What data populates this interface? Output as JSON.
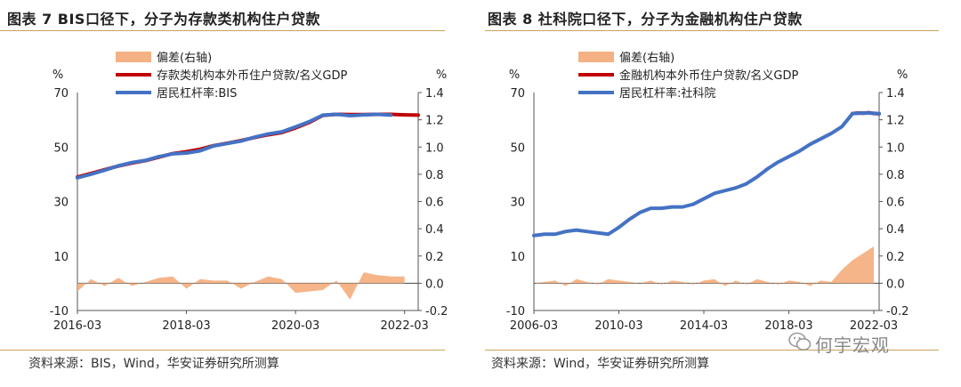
{
  "chart_data": [
    {
      "type": "line",
      "title": "图表 7 BIS口径下，分子为存款类机构住户贷款",
      "source": "资料来源：BIS，Wind，华安证券研究所测算",
      "left_axis": {
        "unit": "%",
        "ticks": [
          70,
          50,
          30,
          10,
          -10
        ],
        "range": [
          -10,
          70
        ]
      },
      "right_axis": {
        "unit": "%",
        "ticks": [
          "1.4",
          "1.2",
          "1.0",
          "0.8",
          "0.6",
          "0.4",
          "0.2",
          "0.0",
          "-0.2"
        ],
        "range": [
          -0.2,
          1.4
        ]
      },
      "x_ticks": [
        {
          "label": "2016-03",
          "x": 0
        },
        {
          "label": "2018-03",
          "x": 8
        },
        {
          "label": "2020-03",
          "x": 16
        },
        {
          "label": "2022-03",
          "x": 24
        }
      ],
      "x_range": [
        0,
        25
      ],
      "legend": [
        "偏差(右轴)",
        "存款类机构本外币住户贷款/名义GDP",
        "居民杠杆率:BIS"
      ],
      "series": [
        {
          "name": "偏差(右轴)",
          "kind": "area",
          "axis": "right",
          "color": "#f4b183",
          "x": [
            0,
            1,
            2,
            3,
            4,
            5,
            6,
            7,
            8,
            9,
            10,
            11,
            12,
            13,
            14,
            15,
            16,
            17,
            18,
            19,
            20,
            21,
            22,
            23,
            24
          ],
          "values": [
            -0.06,
            0.03,
            -0.02,
            0.04,
            -0.02,
            0.01,
            0.04,
            0.05,
            -0.04,
            0.03,
            0.02,
            0.02,
            -0.04,
            0.01,
            0.05,
            0.03,
            -0.07,
            -0.06,
            -0.05,
            0.02,
            -0.12,
            0.08,
            0.06,
            0.05,
            0.05
          ]
        },
        {
          "name": "存款类机构本外币住户贷款/名义GDP",
          "kind": "line",
          "axis": "left",
          "color": "#c00000",
          "x": [
            0,
            1,
            2,
            3,
            4,
            5,
            6,
            7,
            8,
            9,
            10,
            11,
            12,
            13,
            14,
            15,
            16,
            17,
            18,
            19,
            20,
            21,
            22,
            23,
            24,
            25
          ],
          "values": [
            39,
            40.3,
            41.7,
            43,
            44.1,
            45,
            46.3,
            47.6,
            48.3,
            49.2,
            50.5,
            51.4,
            52.4,
            53.5,
            54.5,
            55.3,
            57,
            59,
            61.6,
            62,
            61.9,
            61.9,
            62,
            62,
            61.8,
            61.7
          ]
        },
        {
          "name": "居民杠杆率:BIS",
          "kind": "line",
          "axis": "left",
          "color": "#4472c4",
          "x": [
            0,
            1,
            2,
            3,
            4,
            5,
            6,
            7,
            8,
            9,
            10,
            11,
            12,
            13,
            14,
            15,
            16,
            17,
            18,
            19,
            20,
            21,
            22,
            23
          ],
          "values": [
            38.7,
            40,
            41.5,
            43.1,
            44.3,
            45.1,
            46.5,
            47.5,
            47.8,
            48.6,
            50.4,
            51.3,
            52.2,
            53.6,
            54.8,
            55.6,
            57.4,
            59.3,
            61.7,
            62,
            61.5,
            61.8,
            62,
            61.7
          ]
        }
      ]
    },
    {
      "type": "line",
      "title": "图表 8 社科院口径下，分子为金融机构住户贷款",
      "source": "资料来源：Wind，华安证券研究所测算",
      "left_axis": {
        "unit": "%",
        "ticks": [
          70,
          50,
          30,
          10,
          -10
        ],
        "range": [
          -10,
          70
        ]
      },
      "right_axis": {
        "unit": "%",
        "ticks": [
          "1.4",
          "1.2",
          "1.0",
          "0.8",
          "0.6",
          "0.4",
          "0.2",
          "0.0",
          "-0.2"
        ],
        "range": [
          -0.2,
          1.4
        ]
      },
      "x_ticks": [
        {
          "label": "2006-03",
          "x": 0
        },
        {
          "label": "2010-03",
          "x": 16
        },
        {
          "label": "2014-03",
          "x": 32
        },
        {
          "label": "2018-03",
          "x": 48
        },
        {
          "label": "2022-03",
          "x": 64
        }
      ],
      "x_range": [
        0,
        65
      ],
      "legend": [
        "偏差(右轴)",
        "金融机构本外币住户贷款/名义GDP",
        "居民杠杆率:社科院"
      ],
      "series": [
        {
          "name": "偏差(右轴)",
          "kind": "area",
          "axis": "right",
          "color": "#f4b183",
          "x": [
            0,
            2,
            4,
            6,
            8,
            10,
            12,
            14,
            16,
            18,
            20,
            22,
            24,
            26,
            28,
            30,
            32,
            34,
            36,
            38,
            40,
            42,
            44,
            46,
            48,
            50,
            52,
            54,
            56,
            58,
            60,
            62,
            64
          ],
          "values": [
            0,
            0.01,
            0.02,
            -0.02,
            0.03,
            0.01,
            -0.01,
            0.03,
            0.02,
            0.01,
            0,
            0.02,
            -0.01,
            0.02,
            0.01,
            -0.01,
            0.02,
            0.03,
            -0.02,
            0.02,
            -0.01,
            0.03,
            0.01,
            -0.01,
            0.02,
            0.01,
            -0.02,
            0.02,
            0.01,
            0.1,
            0.17,
            0.22,
            0.27
          ]
        },
        {
          "name": "金融机构本外币住户贷款/名义GDP",
          "kind": "line",
          "axis": "left",
          "color": "#c00000",
          "x": [
            60,
            61,
            62,
            63,
            64,
            65
          ],
          "values": [
            62.3,
            62.5,
            62.4,
            62.6,
            62.3,
            62.2
          ]
        },
        {
          "name": "居民杠杆率:社科院",
          "kind": "line",
          "axis": "left",
          "color": "#4472c4",
          "x": [
            0,
            2,
            4,
            6,
            8,
            10,
            12,
            14,
            16,
            18,
            20,
            22,
            24,
            26,
            28,
            30,
            32,
            34,
            36,
            38,
            40,
            42,
            44,
            46,
            48,
            50,
            52,
            54,
            56,
            58,
            60,
            62,
            64,
            65
          ],
          "values": [
            17.5,
            18,
            18,
            19,
            19.5,
            19,
            18.5,
            18,
            20.5,
            23.5,
            26,
            27.5,
            27.5,
            28,
            28,
            29,
            31,
            33,
            34,
            35,
            36.5,
            39,
            42,
            44.5,
            46.5,
            48.5,
            51,
            53,
            55,
            57.5,
            62.3,
            62.5,
            62.4,
            62.2
          ]
        }
      ]
    }
  ],
  "watermark": "何宇宏观"
}
